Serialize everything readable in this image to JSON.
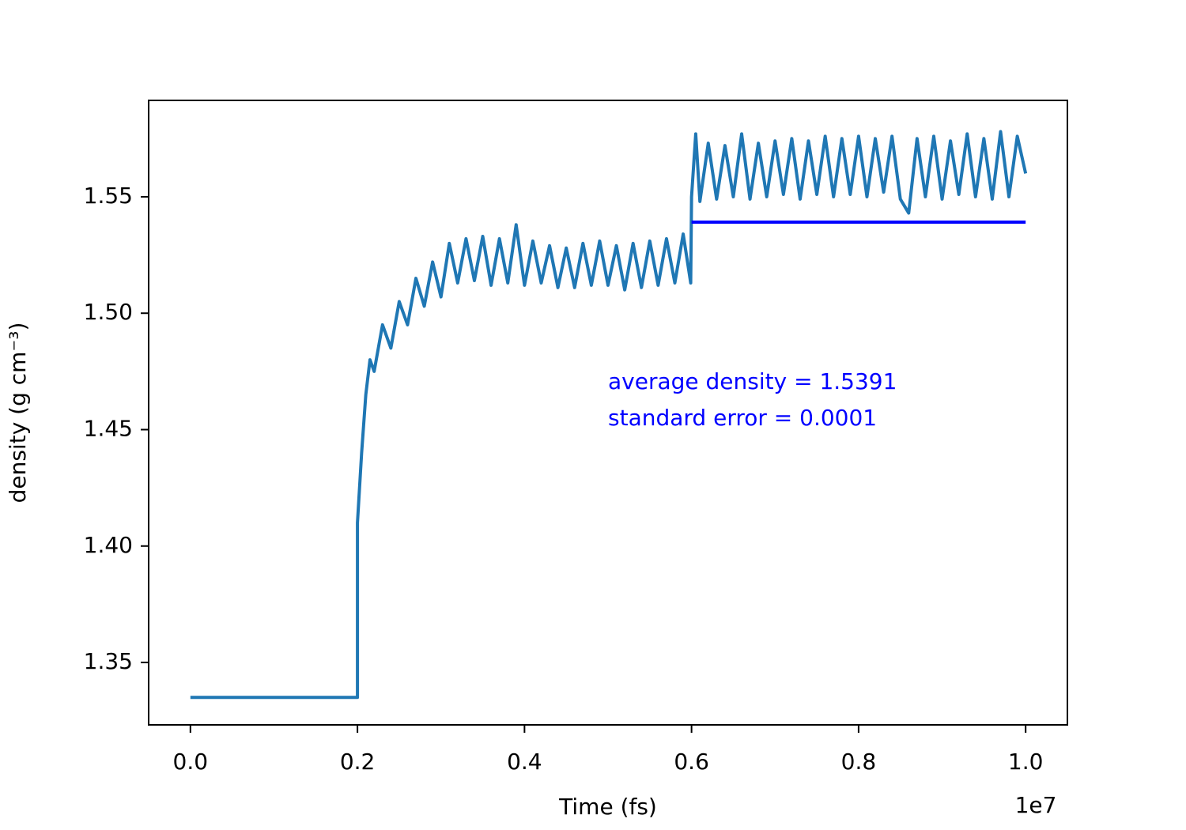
{
  "chart_data": {
    "type": "line",
    "xlabel": "Time (fs)",
    "ylabel": "density (g cm⁻³)",
    "x_offset_label": "1e7",
    "annotations": [
      "average density = 1.5391",
      "standard error = 0.0001"
    ],
    "annotation_color": "#0000ff",
    "xlim": [
      -0.05,
      1.05
    ],
    "ylim": [
      1.3232,
      1.5914
    ],
    "xticks": [
      {
        "value": 0,
        "label": "0.0"
      },
      0.2,
      0.4,
      0.6,
      0.8,
      {
        "value": 1,
        "label": "1.0"
      }
    ],
    "yticks": [
      1.35,
      {
        "value": 1.4,
        "label": "1.40"
      },
      1.45,
      {
        "value": 1.5,
        "label": "1.50"
      },
      1.55
    ],
    "series": [
      {
        "name": "density",
        "color": "#1f77b4",
        "x": [
          0,
          0.2,
          0.2,
          0.205,
          0.21,
          0.215,
          0.22,
          0.23,
          0.24,
          0.25,
          0.26,
          0.27,
          0.28,
          0.29,
          0.3,
          0.31,
          0.32,
          0.33,
          0.34,
          0.35,
          0.36,
          0.37,
          0.38,
          0.39,
          0.4,
          0.41,
          0.42,
          0.43,
          0.44,
          0.45,
          0.46,
          0.47,
          0.48,
          0.49,
          0.5,
          0.51,
          0.52,
          0.53,
          0.54,
          0.55,
          0.56,
          0.57,
          0.58,
          0.59,
          0.599,
          0.6,
          0.605,
          0.61,
          0.62,
          0.63,
          0.64,
          0.65,
          0.66,
          0.67,
          0.68,
          0.69,
          0.7,
          0.71,
          0.72,
          0.73,
          0.74,
          0.75,
          0.76,
          0.77,
          0.78,
          0.79,
          0.8,
          0.81,
          0.82,
          0.83,
          0.84,
          0.85,
          0.86,
          0.87,
          0.88,
          0.89,
          0.9,
          0.91,
          0.92,
          0.93,
          0.94,
          0.95,
          0.96,
          0.97,
          0.98,
          0.99,
          1.0
        ],
        "values": [
          1.335,
          1.335,
          1.41,
          1.44,
          1.465,
          1.48,
          1.475,
          1.495,
          1.485,
          1.505,
          1.495,
          1.515,
          1.503,
          1.522,
          1.507,
          1.53,
          1.513,
          1.532,
          1.514,
          1.533,
          1.512,
          1.532,
          1.513,
          1.538,
          1.512,
          1.531,
          1.513,
          1.529,
          1.511,
          1.528,
          1.511,
          1.53,
          1.512,
          1.531,
          1.512,
          1.529,
          1.51,
          1.53,
          1.511,
          1.531,
          1.512,
          1.532,
          1.513,
          1.534,
          1.513,
          1.55,
          1.577,
          1.548,
          1.573,
          1.549,
          1.572,
          1.55,
          1.577,
          1.549,
          1.573,
          1.55,
          1.574,
          1.551,
          1.575,
          1.549,
          1.574,
          1.551,
          1.576,
          1.55,
          1.575,
          1.551,
          1.576,
          1.55,
          1.575,
          1.552,
          1.576,
          1.549,
          1.543,
          1.575,
          1.55,
          1.576,
          1.549,
          1.574,
          1.551,
          1.577,
          1.55,
          1.575,
          1.549,
          1.578,
          1.55,
          1.576,
          1.56
        ]
      },
      {
        "name": "average",
        "color": "#0000ff",
        "x": [
          0.6,
          1.0
        ],
        "values": [
          1.5391,
          1.5391
        ]
      }
    ]
  }
}
